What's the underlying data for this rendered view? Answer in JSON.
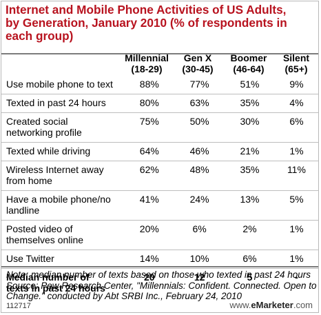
{
  "chart_data": {
    "type": "table",
    "title_lines": [
      "Internet and Mobile Phone Activities of US Adults,",
      "by Generation, January 2010 (% of respondents in",
      "each group)"
    ],
    "columns": [
      {
        "name": "Millennial",
        "range": "(18-29)"
      },
      {
        "name": "Gen X",
        "range": "(30-45)"
      },
      {
        "name": "Boomer",
        "range": "(46-64)"
      },
      {
        "name": "Silent",
        "range": "(65+)"
      }
    ],
    "rows": [
      {
        "label_lines": [
          "Use mobile phone to text"
        ],
        "values": [
          "88%",
          "77%",
          "51%",
          "9%"
        ]
      },
      {
        "label_lines": [
          "Texted in past 24 hours"
        ],
        "values": [
          "80%",
          "63%",
          "35%",
          "4%"
        ]
      },
      {
        "label_lines": [
          "Created social",
          "networking profile"
        ],
        "values": [
          "75%",
          "50%",
          "30%",
          "6%"
        ]
      },
      {
        "label_lines": [
          "Texted while driving"
        ],
        "values": [
          "64%",
          "46%",
          "21%",
          "1%"
        ]
      },
      {
        "label_lines": [
          "Wireless Internet away",
          "from home"
        ],
        "values": [
          "62%",
          "48%",
          "35%",
          "11%"
        ]
      },
      {
        "label_lines": [
          "Have a mobile phone/no",
          "landline"
        ],
        "values": [
          "41%",
          "24%",
          "13%",
          "5%"
        ]
      },
      {
        "label_lines": [
          "Posted video of",
          "themselves online"
        ],
        "values": [
          "20%",
          "6%",
          "2%",
          "1%"
        ]
      },
      {
        "label_lines": [
          "Use Twitter"
        ],
        "values": [
          "14%",
          "10%",
          "6%",
          "1%"
        ]
      },
      {
        "label_lines": [
          "Median number of",
          "texts in past 24 hours"
        ],
        "values": [
          "20",
          "12",
          "5",
          "-"
        ],
        "bold": true
      }
    ],
    "note_lines": [
      "Note: median number of texts based on those who texted in past 24 hours",
      "Source: Pew Research Center, \"Millennials: Confident. Connected. Open to",
      "Change.\" conducted by Abt SRBI Inc., February 24, 2010"
    ]
  },
  "footer": {
    "id": "112717",
    "brand_prefix": "www.",
    "brand_name": "eMarketer",
    "brand_suffix": ".com"
  }
}
